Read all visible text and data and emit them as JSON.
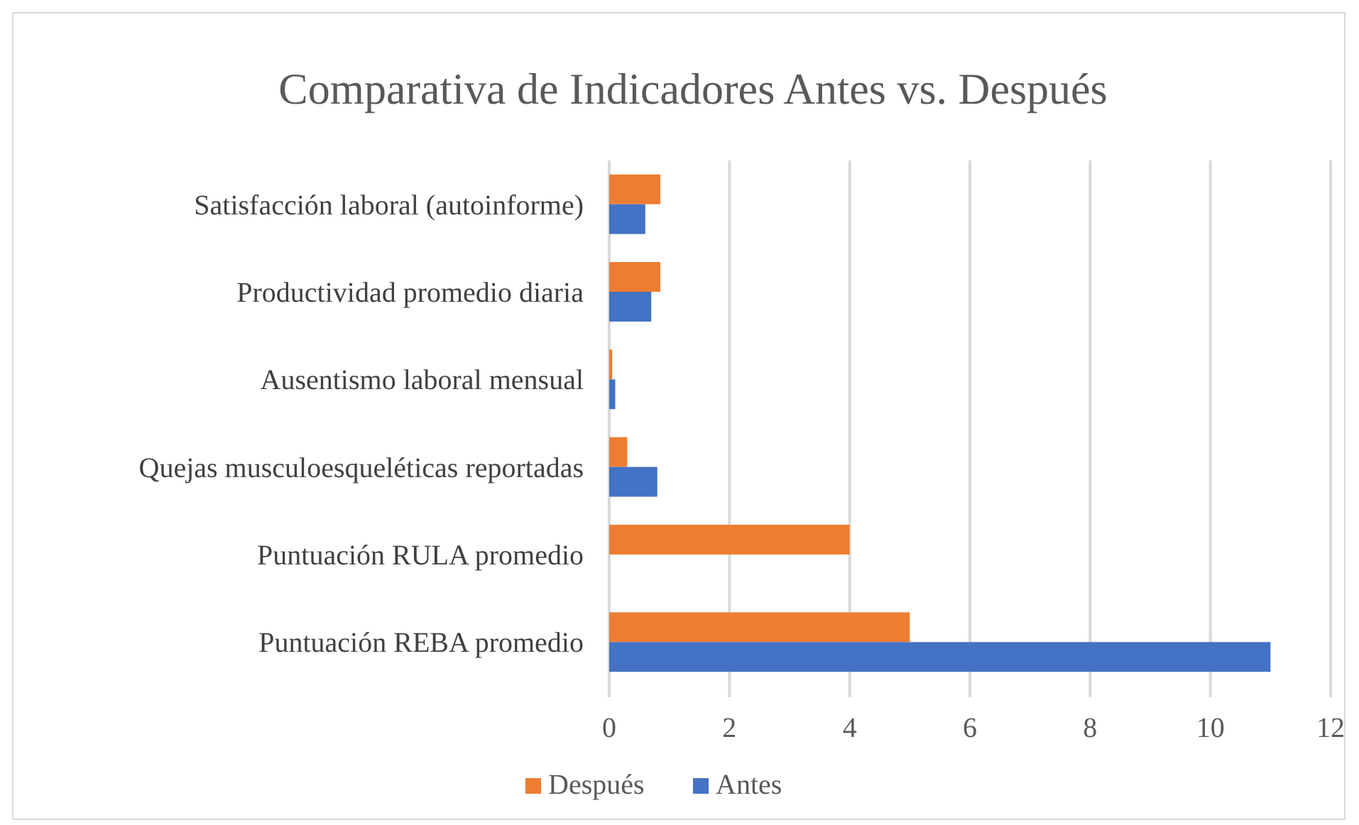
{
  "chart_data": {
    "type": "bar",
    "orientation": "horizontal",
    "title": "Comparativa de Indicadores Antes vs. Después",
    "categories": [
      "Satisfacción laboral (autoinforme)",
      "Productividad promedio diaria",
      "Ausentismo laboral mensual",
      "Quejas musculoesqueléticas reportadas",
      "Puntuación RULA promedio",
      "Puntuación REBA promedio"
    ],
    "series": [
      {
        "name": "Después",
        "color": "#ed7d31",
        "values": [
          0.85,
          0.85,
          0.05,
          0.3,
          4,
          5
        ]
      },
      {
        "name": "Antes",
        "color": "#4472c4",
        "values": [
          0.6,
          0.7,
          0.1,
          0.8,
          null,
          11
        ]
      }
    ],
    "xlim": [
      0,
      12
    ],
    "xticks": [
      0,
      2,
      4,
      6,
      8,
      10,
      12
    ],
    "grid": "x",
    "legend": "bottom"
  }
}
